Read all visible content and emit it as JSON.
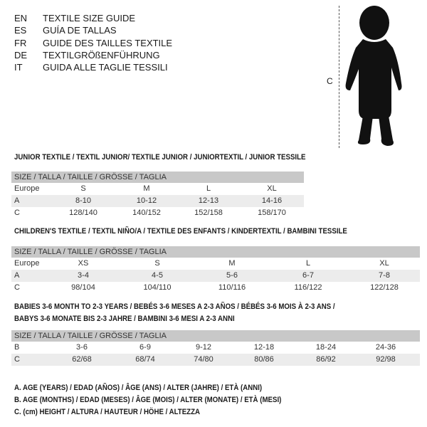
{
  "languages": [
    {
      "code": "EN",
      "text": "TEXTILE SIZE GUIDE"
    },
    {
      "code": "ES",
      "text": "GUÍA DE TALLAS"
    },
    {
      "code": "FR",
      "text": "GUIDE DES TAILLES TEXTILE"
    },
    {
      "code": "DE",
      "text": "TEXTILGRÖßENFÜHRUNG"
    },
    {
      "code": "IT",
      "text": "GUIDA ALLE TAGLIE TESSILI"
    }
  ],
  "figure": {
    "height_label": "C",
    "icon": "child-silhouette"
  },
  "size_header": "SIZE / TALLA / TAILLE / GRÖSSE / TAGLIA",
  "junior": {
    "title": "JUNIOR TEXTILE / TEXTIL JUNIOR/ TEXTILE JUNIOR / JUNIORTEXTIL / JUNIOR TESSILE",
    "rows": [
      [
        "Europe",
        "S",
        "M",
        "L",
        "XL"
      ],
      [
        "A",
        "8-10",
        "10-12",
        "12-13",
        "14-16"
      ],
      [
        "C",
        "128/140",
        "140/152",
        "152/158",
        "158/170"
      ]
    ]
  },
  "children": {
    "title": "CHILDREN'S TEXTILE / TEXTIL NIÑO/A / TEXTILE DES ENFANTS / KINDERTEXTIL / BAMBINI TESSILE",
    "rows": [
      [
        "Europe",
        "XS",
        "S",
        "M",
        "L",
        "XL"
      ],
      [
        "A",
        "3-4",
        "4-5",
        "5-6",
        "6-7",
        "7-8"
      ],
      [
        "C",
        "98/104",
        "104/110",
        "110/116",
        "116/122",
        "122/128"
      ]
    ]
  },
  "babies": {
    "title_line1": "BABIES 3-6 MONTH TO 2-3 YEARS / BEBÉS 3-6 MESES A 2-3 AÑOS / BÉBÉS 3-6 MOIS À 2-3 ANS /",
    "title_line2": "BABYS 3-6 MONATE BIS 2-3 JAHRE / BAMBINI 3-6 MESI A 2-3 ANNI",
    "rows": [
      [
        "B",
        "3-6",
        "6-9",
        "9-12",
        "12-18",
        "18-24",
        "24-36"
      ],
      [
        "C",
        "62/68",
        "68/74",
        "74/80",
        "80/86",
        "86/92",
        "92/98"
      ]
    ]
  },
  "legend": [
    "A. AGE (YEARS) / EDAD (AÑOS) / ÂGE (ANS) / ALTER (JAHRE) / ETÀ (ANNI)",
    "B. AGE (MONTHS) / EDAD (MESES) / ÂGE (MOIS) / ALTER (MONATE) / ETÀ (MESI)",
    "C. (cm) HEIGHT / ALTURA / HAUTEUR / HÖHE / ALTEZZA"
  ]
}
